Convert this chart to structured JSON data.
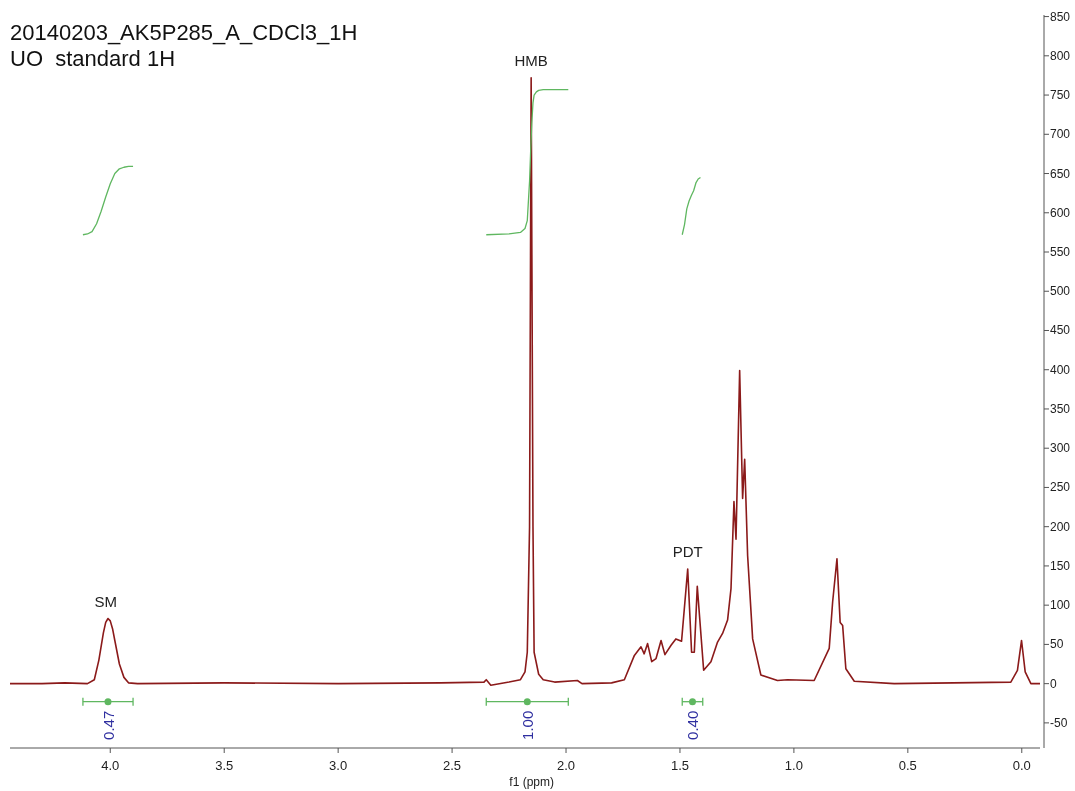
{
  "chart_data": {
    "type": "line",
    "title": "20140203_AK5P285_A_CDCl3_1H",
    "subtitle": "UO  standard 1H",
    "xlabel": "f1 (ppm)",
    "xlim": [
      4.44,
      -0.08
    ],
    "ylim": [
      -82,
      852
    ],
    "xticks": [
      {
        "value": 4,
        "label": "4.0"
      },
      {
        "value": 3.5,
        "label": "3.5"
      },
      {
        "value": 3,
        "label": "3.0"
      },
      {
        "value": 2.5,
        "label": "2.5"
      },
      {
        "value": 2,
        "label": "2.0"
      },
      {
        "value": 1.5,
        "label": "1.5"
      },
      {
        "value": 1,
        "label": "1.0"
      },
      {
        "value": 0.5,
        "label": "0.5"
      },
      {
        "value": 0,
        "label": "0.0"
      }
    ],
    "yticks": [
      -50,
      0,
      50,
      100,
      150,
      200,
      250,
      300,
      350,
      400,
      450,
      500,
      550,
      600,
      650,
      700,
      750,
      800,
      850
    ],
    "grid": false,
    "marker": "none",
    "line_style": "solid",
    "series": [
      {
        "color": "#8b1a1a",
        "x": [
          4.44,
          4.3,
          4.2,
          4.1,
          4.07,
          4.05,
          4.03,
          4.02,
          4.01,
          4.0,
          3.99,
          3.98,
          3.96,
          3.94,
          3.92,
          3.88,
          3.5,
          3.0,
          2.55,
          2.36,
          2.35,
          2.33,
          2.25,
          2.2,
          2.18,
          2.17,
          2.16,
          2.153,
          2.145,
          2.14,
          2.12,
          2.1,
          2.05,
          1.95,
          1.93,
          1.8,
          1.744,
          1.7,
          1.671,
          1.657,
          1.642,
          1.624,
          1.605,
          1.583,
          1.566,
          1.539,
          1.518,
          1.493,
          1.466,
          1.449,
          1.437,
          1.424,
          1.396,
          1.364,
          1.335,
          1.313,
          1.291,
          1.276,
          1.263,
          1.254,
          1.238,
          1.225,
          1.216,
          1.203,
          1.181,
          1.145,
          1.072,
          1.028,
          0.911,
          0.845,
          0.83,
          0.811,
          0.797,
          0.786,
          0.772,
          0.735,
          0.56,
          0.3,
          0.048,
          0.019,
          0.001,
          -0.015,
          -0.04,
          -0.08
        ],
        "values": [
          0,
          0,
          1,
          0,
          5,
          30,
          65,
          78,
          83,
          80,
          70,
          55,
          25,
          8,
          1,
          0,
          1,
          0,
          1,
          2,
          5,
          -2,
          2,
          5,
          15,
          40,
          200,
          772,
          200,
          40,
          12,
          5,
          2,
          4,
          0,
          1,
          5,
          36,
          47,
          38,
          51,
          28,
          32,
          55,
          37,
          49,
          57,
          54,
          146,
          40,
          40,
          124,
          17,
          28,
          53,
          64,
          81,
          121,
          232,
          184,
          399,
          236,
          286,
          163,
          57,
          11,
          4,
          5,
          4,
          45,
          104,
          159,
          78,
          74,
          19,
          3,
          0,
          1,
          2,
          17,
          55,
          15,
          0,
          0
        ]
      },
      {
        "color": "#5fb760",
        "x": [
          4.12,
          4.1,
          4.08,
          4.06,
          4.04,
          4.02,
          4.0,
          3.98,
          3.96,
          3.94,
          3.92,
          3.9
        ],
        "values": [
          572,
          573,
          576,
          586,
          602,
          620,
          637,
          650,
          656,
          658,
          659,
          659
        ]
      },
      {
        "color": "#5fb760",
        "x": [
          2.35,
          2.25,
          2.2,
          2.18,
          2.17,
          2.16,
          2.155,
          2.15,
          2.145,
          2.14,
          2.13,
          2.12,
          2.1,
          2.05,
          1.99
        ],
        "values": [
          572,
          573,
          575,
          580,
          590,
          640,
          680,
          715,
          740,
          750,
          754,
          756,
          757,
          757,
          757
        ]
      },
      {
        "color": "#5fb760",
        "x": [
          1.49,
          1.48,
          1.47,
          1.46,
          1.45,
          1.44,
          1.43,
          1.42,
          1.41
        ],
        "values": [
          572,
          585,
          605,
          615,
          622,
          628,
          638,
          643,
          645
        ]
      },
      {
        "type": "scatter",
        "color": "#5fb760",
        "x": [
          4.01,
          2.17,
          1.445
        ],
        "values": [
          -23,
          -23,
          -23
        ],
        "xerrors": [
          0.11,
          0.18,
          0.045
        ],
        "marker": "circle"
      }
    ],
    "annotations": [
      {
        "text": "SM",
        "x": 4.02,
        "y": 83
      },
      {
        "text": "HMB",
        "x": 2.153,
        "y": 772
      },
      {
        "text": "PDT",
        "x": 1.466,
        "y": 146
      },
      {
        "text": "0.47",
        "x": 4.01,
        "y": -23
      },
      {
        "text": "1.00",
        "x": 2.17,
        "y": -23
      },
      {
        "text": "0.40",
        "x": 1.445,
        "y": -23
      }
    ]
  }
}
